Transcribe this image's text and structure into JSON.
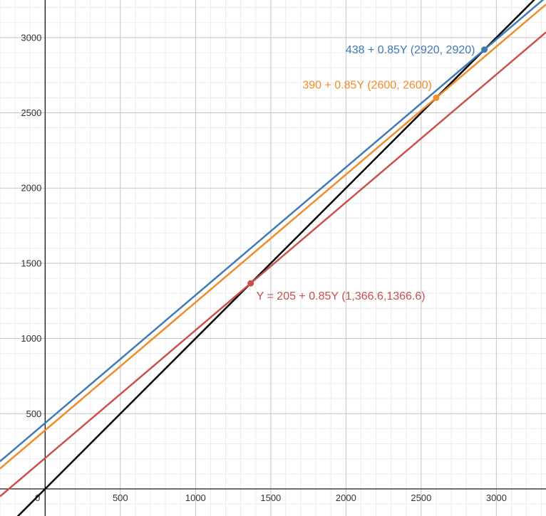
{
  "chart_data": {
    "type": "line",
    "xlim": [
      -300,
      3330
    ],
    "ylim": [
      -180,
      3250
    ],
    "major_step": 500,
    "minor_step": 100,
    "grid": true,
    "x_ticks": [
      0,
      500,
      1000,
      1500,
      2000,
      2500,
      3000
    ],
    "x_tick_labels": [
      "0",
      "500",
      "1000",
      "1500",
      "2000",
      "2500",
      "3000"
    ],
    "y_ticks": [
      500,
      1000,
      1500,
      2000,
      2500,
      3000
    ],
    "y_tick_labels": [
      "500",
      "1000",
      "1500",
      "2000",
      "2500",
      "3000"
    ],
    "series": [
      {
        "intercept": 0,
        "slope": 1,
        "color": "#000000"
      },
      {
        "intercept": 438,
        "slope": 0.85,
        "color": "#3f7ab5"
      },
      {
        "intercept": 390,
        "slope": 0.85,
        "color": "#f28c28"
      },
      {
        "intercept": 205,
        "slope": 0.85,
        "color": "#c9504d"
      }
    ],
    "points": [
      {
        "x": 2920,
        "y": 2920,
        "color": "#3f7ab5",
        "label": "438 + 0.85Y (2920, 2920)"
      },
      {
        "x": 2600,
        "y": 2600,
        "color": "#f28c28",
        "label": "390 + 0.85Y (2600, 2600)"
      },
      {
        "x": 1366.6,
        "y": 1366.6,
        "color": "#c9504d",
        "label": "Y = 205 + 0.85Y (1,366.6,1366.6)"
      }
    ]
  }
}
